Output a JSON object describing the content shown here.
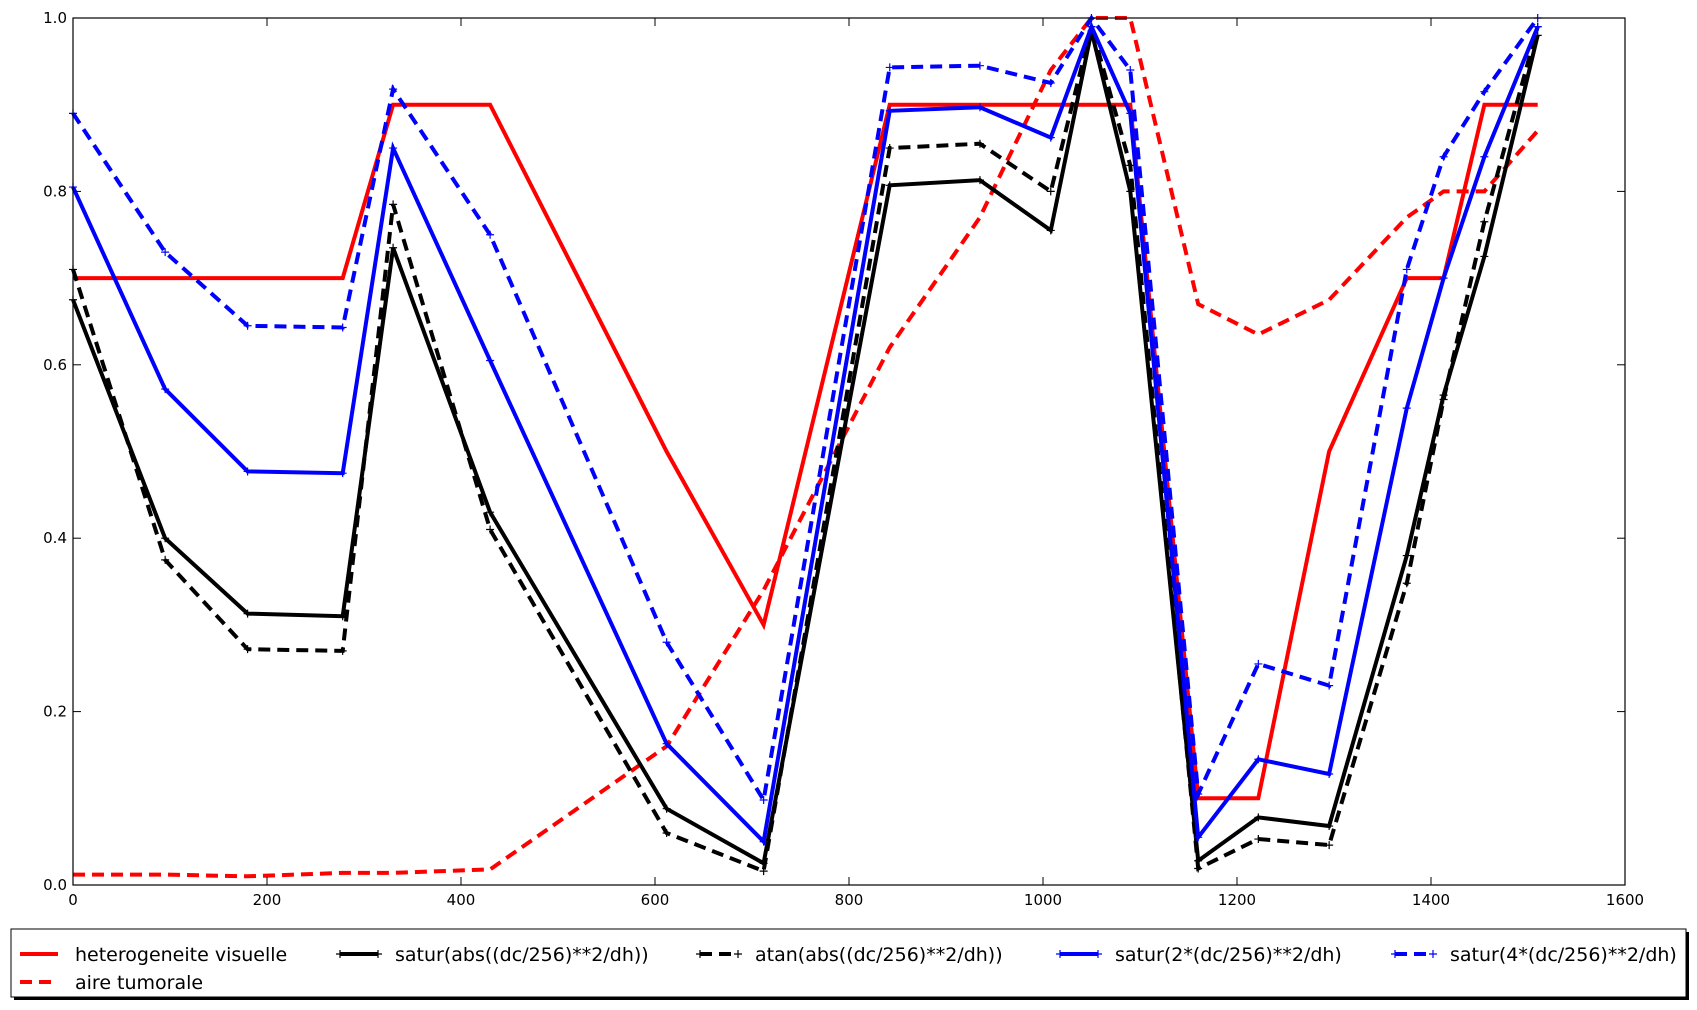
{
  "chart_data": {
    "type": "line",
    "title": "",
    "xlabel": "",
    "ylabel": "",
    "xlim": [
      0,
      1600
    ],
    "ylim": [
      0,
      1.0
    ],
    "xticks": [
      "0",
      "200",
      "400",
      "600",
      "800",
      "1000",
      "1200",
      "1400",
      "1600"
    ],
    "yticks": [
      "0.0",
      "0.2",
      "0.4",
      "0.6",
      "0.8",
      "1.0"
    ],
    "grid": false,
    "legend_position": "bottom",
    "series": [
      {
        "name": "heterogeneite visuelle",
        "color": "#ff0000",
        "style": "solid",
        "marker": false,
        "x": [
          0,
          95,
          180,
          278,
          330,
          430,
          612,
          712,
          842,
          935,
          1008,
          1050,
          1090,
          1160,
          1222,
          1295,
          1375,
          1413,
          1455,
          1510
        ],
        "y": [
          0.7,
          0.7,
          0.7,
          0.7,
          0.9,
          0.9,
          0.5,
          0.3,
          0.9,
          0.9,
          0.9,
          0.9,
          0.9,
          0.1,
          0.1,
          0.5,
          0.7,
          0.7,
          0.9,
          0.9
        ]
      },
      {
        "name": "aire tumorale",
        "color": "#ff0000",
        "style": "dashed",
        "marker": false,
        "x": [
          0,
          95,
          180,
          278,
          330,
          430,
          612,
          712,
          842,
          935,
          1008,
          1050,
          1090,
          1160,
          1222,
          1295,
          1375,
          1413,
          1455,
          1510
        ],
        "y": [
          0.012,
          0.012,
          0.01,
          0.014,
          0.014,
          0.018,
          0.16,
          0.34,
          0.62,
          0.77,
          0.94,
          1.0,
          1.0,
          0.67,
          0.635,
          0.675,
          0.77,
          0.8,
          0.8,
          0.87
        ]
      },
      {
        "name": "satur(abs((dc/256)**2/dh))",
        "color": "#000000",
        "style": "solid",
        "marker": true,
        "x": [
          0,
          95,
          180,
          278,
          330,
          430,
          612,
          712,
          842,
          935,
          1008,
          1050,
          1090,
          1160,
          1222,
          1295,
          1375,
          1413,
          1455,
          1510
        ],
        "y": [
          0.675,
          0.4,
          0.313,
          0.31,
          0.735,
          0.43,
          0.088,
          0.025,
          0.807,
          0.813,
          0.755,
          0.985,
          0.8,
          0.028,
          0.078,
          0.068,
          0.38,
          0.565,
          0.725,
          0.98
        ]
      },
      {
        "name": "atan(abs((dc/256)**2/dh))",
        "color": "#000000",
        "style": "dashed",
        "marker": true,
        "x": [
          0,
          95,
          180,
          278,
          330,
          430,
          612,
          712,
          842,
          935,
          1008,
          1050,
          1090,
          1160,
          1222,
          1295,
          1375,
          1413,
          1455,
          1510
        ],
        "y": [
          0.71,
          0.375,
          0.272,
          0.27,
          0.785,
          0.41,
          0.06,
          0.016,
          0.85,
          0.855,
          0.8,
          0.99,
          0.83,
          0.019,
          0.053,
          0.046,
          0.348,
          0.56,
          0.765,
          0.99
        ]
      },
      {
        "name": "satur(2*(dc/256)**2/dh)",
        "color": "#0000ff",
        "style": "solid",
        "marker": true,
        "x": [
          0,
          95,
          180,
          278,
          330,
          430,
          612,
          712,
          842,
          935,
          1008,
          1050,
          1090,
          1160,
          1222,
          1295,
          1375,
          1413,
          1455,
          1510
        ],
        "y": [
          0.805,
          0.572,
          0.477,
          0.475,
          0.85,
          0.605,
          0.163,
          0.05,
          0.893,
          0.897,
          0.862,
          0.99,
          0.89,
          0.055,
          0.145,
          0.128,
          0.55,
          0.7,
          0.84,
          0.99
        ]
      },
      {
        "name": "satur(4*(dc/256)**2/dh)",
        "color": "#0000ff",
        "style": "dashed",
        "marker": true,
        "x": [
          0,
          95,
          180,
          278,
          330,
          430,
          612,
          712,
          842,
          935,
          1008,
          1050,
          1090,
          1160,
          1222,
          1295,
          1375,
          1413,
          1455,
          1510
        ],
        "y": [
          0.89,
          0.73,
          0.645,
          0.643,
          0.918,
          0.75,
          0.28,
          0.098,
          0.943,
          0.945,
          0.925,
          1.0,
          0.94,
          0.105,
          0.255,
          0.23,
          0.71,
          0.84,
          0.915,
          1.0
        ]
      }
    ]
  }
}
